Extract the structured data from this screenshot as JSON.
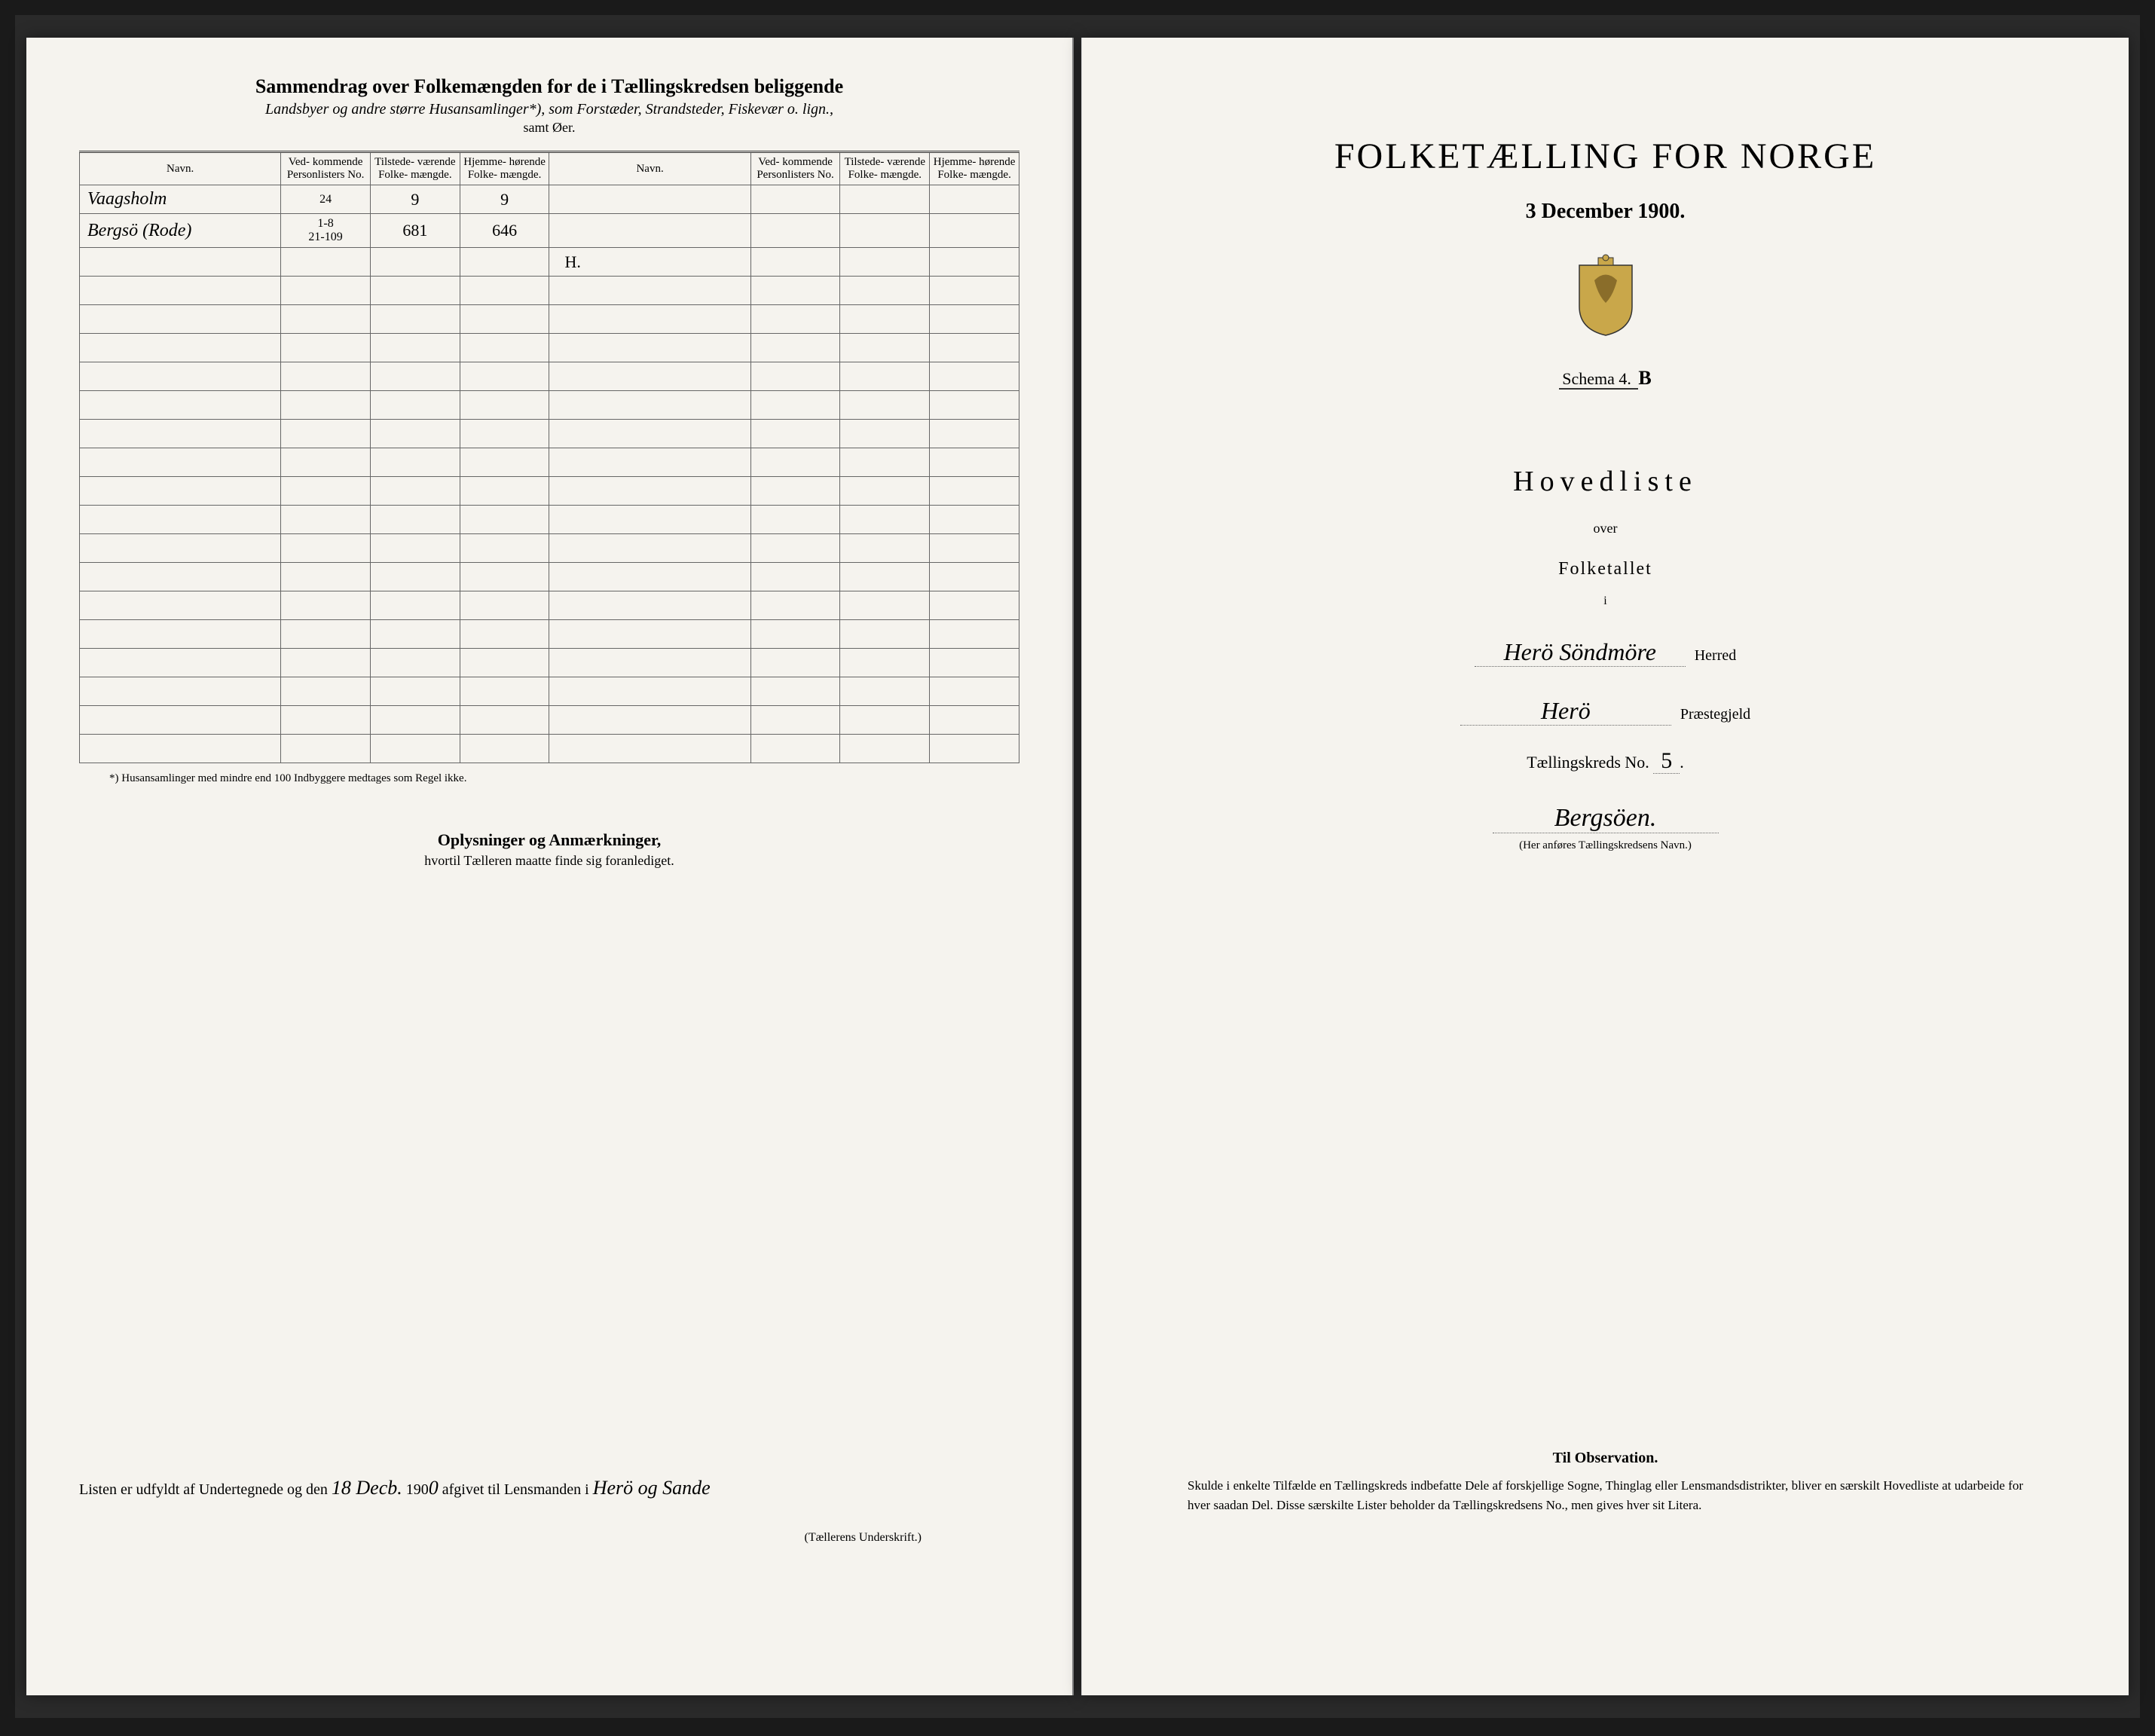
{
  "left": {
    "title_main": "Sammendrag over Folkemængden for de i Tællingskredsen beliggende",
    "title_sub": "Landsbyer og andre større Husansamlinger*), som Forstæder, Strandsteder, Fiskevær o. lign.,",
    "title_sub2": "samt Øer.",
    "headers": {
      "navn": "Navn.",
      "vedk": "Ved-\nkommende\nPersonlisters\nNo.",
      "tilst": "Tilstede-\nværende\nFolke-\nmængde.",
      "hjemme": "Hjemme-\nhørende\nFolke-\nmængde."
    },
    "rows": [
      {
        "navn": "Vaagsholm",
        "vedk": "24",
        "tilst": "9",
        "hjemme": "9"
      },
      {
        "navn": "Bergsö (Rode)",
        "vedk": "1-8\n21-109",
        "tilst": "681",
        "hjemme": "646"
      }
    ],
    "mark": "H.",
    "footnote": "*) Husansamlinger med mindre end 100 Indbyggere medtages som Regel ikke.",
    "oplys_title": "Oplysninger og Anmærkninger,",
    "oplys_sub": "hvortil Tælleren maatte finde sig foranlediget.",
    "bottom_text1": "Listen er udfyldt af Undertegnede og den",
    "bottom_date_day": "18 Decb.",
    "bottom_text2": "190",
    "bottom_year_suffix": "0",
    "bottom_text3": "afgivet til Lensmanden i",
    "bottom_place": "Herö og Sande",
    "signature_label": "(Tællerens Underskrift.)"
  },
  "right": {
    "main_title": "FOLKETÆLLING FOR NORGE",
    "date": "3 December 1900.",
    "schema_label": "Schema",
    "schema_no": "4.",
    "schema_letter": "B",
    "hovedliste": "Hovedliste",
    "over": "over",
    "folketallet": "Folketallet",
    "small_i": "i",
    "herred_hand": "Herö Söndmöre",
    "herred_label": "Herred",
    "praeste_hand": "Herö",
    "praeste_label": "Præstegjeld",
    "kreds_label": "Tællingskreds No.",
    "kreds_no": "5",
    "kreds_name": "Bergsöen.",
    "kreds_note": "(Her anføres Tællingskredsens Navn.)",
    "obs_title": "Til Observation.",
    "obs_text": "Skulde i enkelte Tilfælde en Tællingskreds indbefatte Dele af forskjellige Sogne, Thinglag eller Lensmandsdistrikter, bliver en særskilt Hovedliste at udarbeide for hver saadan Del. Disse særskilte Lister beholder da Tællingskredsens No., men gives hver sit Litera."
  },
  "colors": {
    "paper": "#f5f3ee",
    "ink": "#2a2a2a",
    "border": "#666666",
    "background": "#1a1a1a"
  }
}
